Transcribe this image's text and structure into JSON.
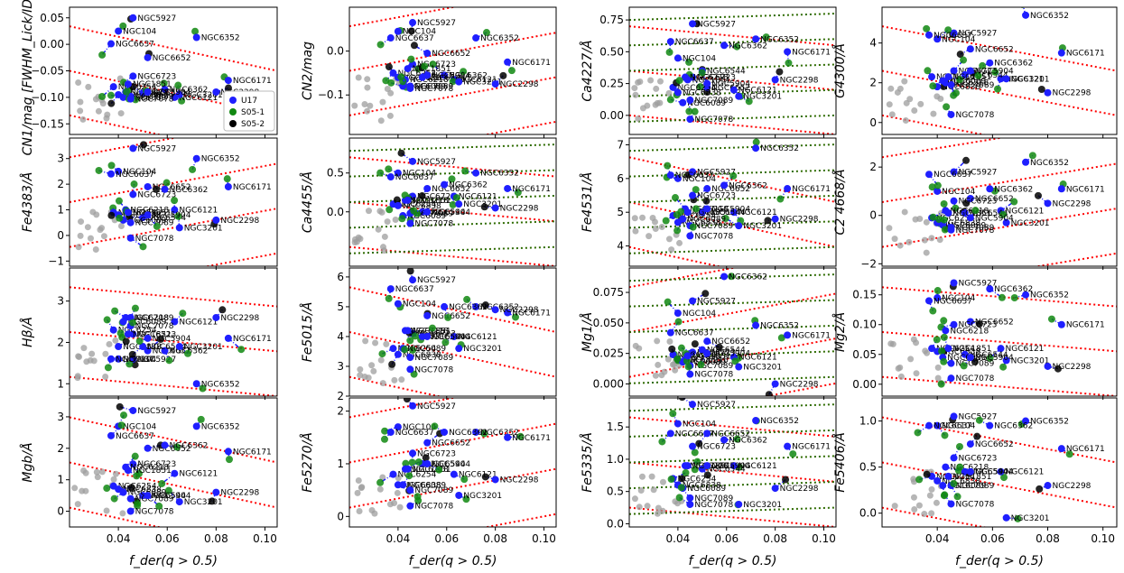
{
  "chart_data": {
    "type": "scatter",
    "layout": {
      "rows": 4,
      "cols": 4
    },
    "xlabel": "f_der(q > 0.5)",
    "xlim": [
      0.02,
      0.105
    ],
    "xticks": [
      0.04,
      0.06,
      0.08,
      0.1
    ],
    "xticklabels": [
      "0.04",
      "0.06",
      "0.08",
      "0.10"
    ],
    "legend": {
      "placement": "lower-right of panel 1",
      "entries": [
        {
          "name": "U17",
          "color": "#1f1fff"
        },
        {
          "name": "S05-1",
          "color": "#118811"
        },
        {
          "name": "S05-2",
          "color": "#000000"
        }
      ]
    },
    "colors": {
      "u17": "#1f1fff",
      "s051": "#118811",
      "s052": "#000000",
      "gray": "#9e9e9e",
      "red": "#ff0000",
      "green": "#2e6b00"
    },
    "clusters": [
      {
        "name": "NGC5927",
        "f": 0.046
      },
      {
        "name": "NGC104",
        "f": 0.04
      },
      {
        "name": "NGC6637",
        "f": 0.037
      },
      {
        "name": "NGC6352",
        "f": 0.072
      },
      {
        "name": "NGC6652",
        "f": 0.052
      },
      {
        "name": "NGC6723",
        "f": 0.046
      },
      {
        "name": "NGC6171",
        "f": 0.085
      },
      {
        "name": "NGC6254",
        "f": 0.038
      },
      {
        "name": "NGC6838",
        "f": 0.04
      },
      {
        "name": "NGC6362",
        "f": 0.059
      },
      {
        "name": "NGC6218",
        "f": 0.043
      },
      {
        "name": "NGC6121",
        "f": 0.063
      },
      {
        "name": "NGC6544",
        "f": 0.05
      },
      {
        "name": "NGC3201",
        "f": 0.065
      },
      {
        "name": "NGC6089",
        "f": 0.042
      },
      {
        "name": "NGC7089",
        "f": 0.045
      },
      {
        "name": "NGC2298",
        "f": 0.08
      },
      {
        "name": "NGC7078",
        "f": 0.045
      },
      {
        "name": "NGC1851",
        "f": 0.044
      },
      {
        "name": "NGC5904",
        "f": 0.052
      }
    ],
    "panels": [
      {
        "name": "CN1/mag [FWHM_Lick/IDS]",
        "ylabel": "CN1/mag  [FWHM_Lick/IDS]",
        "ylim": [
          -0.17,
          0.07
        ],
        "yticks": [
          -0.15,
          -0.1,
          -0.05,
          0.0,
          0.05
        ],
        "yticklabels": [
          "−0.15",
          "−0.10",
          "−0.05",
          "0.00",
          "0.05"
        ],
        "vals": [
          0.05,
          0.025,
          0.001,
          0.013,
          -0.025,
          -0.06,
          -0.068,
          -0.08,
          -0.095,
          -0.085,
          -0.09,
          -0.1,
          -0.092,
          -0.095,
          -0.1,
          -0.098,
          -0.09,
          -0.103,
          -0.075,
          -0.09
        ]
      },
      {
        "name": "CN2/mag",
        "ylabel": "CN2/mag",
        "ylim": [
          -0.19,
          0.1
        ],
        "yticks": [
          -0.1,
          0.0
        ],
        "yticklabels": [
          "−0.1",
          "0.0"
        ],
        "vals": [
          0.065,
          0.045,
          0.03,
          0.03,
          -0.005,
          -0.03,
          -0.025,
          -0.05,
          -0.06,
          -0.055,
          -0.065,
          -0.065,
          -0.06,
          -0.07,
          -0.08,
          -0.08,
          -0.075,
          -0.085,
          -0.04,
          -0.055
        ]
      },
      {
        "name": "Ca4227/Å",
        "ylabel": "Ca4227/Å",
        "ylim": [
          -0.15,
          0.85
        ],
        "yticks": [
          0.0,
          0.25,
          0.5,
          0.75
        ],
        "yticklabels": [
          "0.00",
          "0.25",
          "0.50",
          "0.75"
        ],
        "vals": [
          0.72,
          0.45,
          0.58,
          0.6,
          0.22,
          0.3,
          0.5,
          0.22,
          0.18,
          0.55,
          0.3,
          0.2,
          0.35,
          0.15,
          0.1,
          0.12,
          0.28,
          -0.03,
          0.28,
          0.25
        ]
      },
      {
        "name": "G4300/Å",
        "ylabel": "G4300/Å",
        "ylim": [
          -0.6,
          5.8
        ],
        "yticks": [
          0,
          2,
          4
        ],
        "yticklabels": [
          "0",
          "2",
          "4"
        ],
        "vals": [
          4.5,
          4.2,
          4.4,
          5.4,
          3.7,
          2.6,
          3.5,
          2.3,
          1.8,
          3.0,
          2.0,
          2.2,
          2.4,
          2.2,
          2.1,
          1.9,
          1.5,
          0.4,
          2.3,
          2.6
        ]
      },
      {
        "name": "Fe4383/Å",
        "ylabel": "Fe4383/Å",
        "ylim": [
          -1.2,
          3.8
        ],
        "yticks": [
          -1,
          0,
          1,
          2,
          3
        ],
        "yticklabels": [
          "−1",
          "0",
          "1",
          "2",
          "3"
        ],
        "vals": [
          3.4,
          2.5,
          2.4,
          3.0,
          1.9,
          1.6,
          1.9,
          0.9,
          0.8,
          1.8,
          1.0,
          1.0,
          0.7,
          0.3,
          0.6,
          0.5,
          0.6,
          -0.1,
          0.9,
          0.8
        ]
      },
      {
        "name": "Ca4455/Å",
        "ylabel": "Ca4455/Å",
        "ylim": [
          -0.7,
          0.95
        ],
        "yticks": [
          0.0,
          0.5
        ],
        "yticklabels": [
          "0.0",
          "0.5"
        ],
        "vals": [
          0.65,
          0.5,
          0.45,
          0.5,
          0.3,
          0.2,
          0.3,
          0.1,
          0.08,
          0.35,
          0.15,
          0.2,
          0.0,
          0.1,
          -0.05,
          -0.02,
          0.05,
          -0.15,
          0.15,
          0.0
        ]
      },
      {
        "name": "Fe4531/Å",
        "ylabel": "Fe4531/Å",
        "ylim": [
          3.4,
          7.2
        ],
        "yticks": [
          4,
          5,
          6,
          7
        ],
        "yticklabels": [
          "4",
          "5",
          "6",
          "7"
        ],
        "vals": [
          6.2,
          6.0,
          6.1,
          6.9,
          5.7,
          5.5,
          5.7,
          4.9,
          4.7,
          5.8,
          5.1,
          5.0,
          5.0,
          4.6,
          4.8,
          4.6,
          4.8,
          4.3,
          5.0,
          5.1
        ]
      },
      {
        "name": "C2 4668/Å",
        "ylabel": "C2 4668/Å",
        "ylim": [
          -2.1,
          3.2
        ],
        "yticks": [
          -2,
          0,
          2
        ],
        "yticklabels": [
          "−2",
          "0",
          "2"
        ],
        "vals": [
          1.8,
          1.0,
          1.7,
          2.2,
          0.7,
          0.6,
          1.1,
          -0.1,
          -0.3,
          1.1,
          0.2,
          0.2,
          0.1,
          -0.3,
          -0.4,
          -0.5,
          0.5,
          -0.6,
          0.1,
          -0.1
        ]
      },
      {
        "name": "Hβ/Å",
        "ylabel": "Hβ/Å",
        "ylim": [
          0.7,
          3.8
        ],
        "yticks": [
          1,
          2,
          3
        ],
        "yticklabels": [
          "1",
          "2",
          "3"
        ],
        "vals": [
          1.6,
          1.6,
          1.6,
          1.0,
          1.8,
          2.2,
          2.1,
          2.3,
          1.9,
          1.8,
          2.6,
          2.5,
          1.9,
          1.9,
          2.5,
          2.6,
          2.6,
          2.4,
          2.2,
          2.1
        ]
      },
      {
        "name": "Fe5015/Å",
        "ylabel": "Fe5015/Å",
        "ylim": [
          2.0,
          6.3
        ],
        "yticks": [
          2,
          3,
          4,
          5,
          6
        ],
        "yticklabels": [
          "2",
          "3",
          "4",
          "5",
          "6"
        ],
        "vals": [
          5.9,
          5.1,
          5.6,
          5.0,
          4.7,
          4.1,
          4.8,
          3.6,
          3.4,
          5.0,
          4.2,
          4.0,
          4.0,
          3.6,
          3.6,
          3.3,
          4.9,
          2.9,
          4.2,
          4.0
        ]
      },
      {
        "name": "Mg1/Å",
        "ylabel": "Mg1/Å",
        "ylim": [
          -0.01,
          0.095
        ],
        "yticks": [
          0.0,
          0.025,
          0.05,
          0.075
        ],
        "yticklabels": [
          "0.000",
          "0.025",
          "0.050",
          "0.075"
        ],
        "vals": [
          0.068,
          0.058,
          0.042,
          0.048,
          0.035,
          0.026,
          0.04,
          0.024,
          0.02,
          0.088,
          0.02,
          0.022,
          0.028,
          0.014,
          0.018,
          0.015,
          0.0,
          0.008,
          0.023,
          0.025
        ]
      },
      {
        "name": "Mg2/Å",
        "ylabel": "Mg2/Å",
        "ylim": [
          -0.02,
          0.195
        ],
        "yticks": [
          0.0,
          0.05,
          0.1,
          0.15
        ],
        "yticklabels": [
          "0.00",
          "0.05",
          "0.10",
          "0.15"
        ],
        "vals": [
          0.17,
          0.145,
          0.14,
          0.15,
          0.105,
          0.1,
          0.1,
          0.06,
          0.055,
          0.16,
          0.09,
          0.06,
          0.05,
          0.04,
          0.045,
          0.035,
          0.03,
          0.01,
          0.06,
          0.045
        ]
      },
      {
        "name": "Mgb/Å",
        "ylabel": "Mgb/Å",
        "ylim": [
          -0.5,
          3.6
        ],
        "yticks": [
          0,
          1,
          2,
          3
        ],
        "yticklabels": [
          "0",
          "1",
          "2",
          "3"
        ],
        "vals": [
          3.2,
          2.7,
          2.4,
          2.7,
          2.0,
          1.5,
          1.9,
          0.8,
          0.7,
          2.1,
          1.4,
          1.2,
          0.5,
          0.3,
          0.6,
          0.4,
          0.6,
          0.0,
          1.3,
          0.5
        ]
      },
      {
        "name": "Fe5270/Å",
        "ylabel": "Fe5270/Å",
        "ylim": [
          -0.2,
          2.25
        ],
        "yticks": [
          0,
          1,
          2
        ],
        "yticklabels": [
          "0",
          "1",
          "2"
        ],
        "vals": [
          2.1,
          1.7,
          1.6,
          1.6,
          1.4,
          1.2,
          1.5,
          0.8,
          0.6,
          1.6,
          0.9,
          0.8,
          1.0,
          0.4,
          0.6,
          0.5,
          0.7,
          0.2,
          0.9,
          1.0
        ]
      },
      {
        "name": "Fe5335/Å",
        "ylabel": "Fe5335/Å",
        "ylim": [
          -0.05,
          1.95
        ],
        "yticks": [
          0.0,
          0.5,
          1.0,
          1.5
        ],
        "yticklabels": [
          "0.0",
          "0.5",
          "1.0",
          "1.5"
        ],
        "vals": [
          1.85,
          1.55,
          1.4,
          1.6,
          1.4,
          1.2,
          1.2,
          0.7,
          0.6,
          1.3,
          0.9,
          0.9,
          0.85,
          0.3,
          0.55,
          0.4,
          0.55,
          0.3,
          0.9,
          0.9
        ]
      },
      {
        "name": "Fe5406/Å",
        "ylabel": "Fe5406/Å",
        "ylim": [
          -0.15,
          1.25
        ],
        "yticks": [
          0.0,
          0.5,
          1.0
        ],
        "yticklabels": [
          "0.0",
          "0.5",
          "1.0"
        ],
        "vals": [
          1.05,
          0.95,
          0.95,
          1.0,
          0.75,
          0.6,
          0.7,
          0.4,
          0.35,
          0.95,
          0.5,
          0.45,
          0.45,
          -0.05,
          0.3,
          0.3,
          0.3,
          0.1,
          0.4,
          0.45
        ]
      }
    ]
  }
}
